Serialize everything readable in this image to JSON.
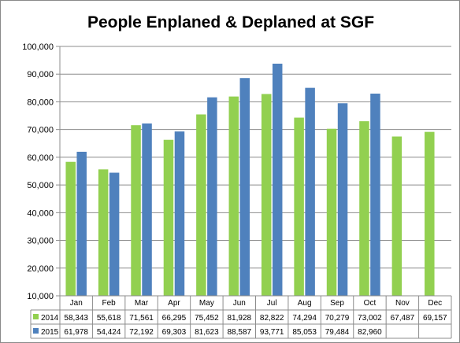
{
  "chart_data": {
    "type": "bar",
    "title": "People Enplaned & Deplaned at SGF",
    "xlabel": "",
    "ylabel": "",
    "ylim": [
      10000,
      100000
    ],
    "yticks": [
      "10,000",
      "20,000",
      "30,000",
      "40,000",
      "50,000",
      "60,000",
      "70,000",
      "80,000",
      "90,000",
      "100,000"
    ],
    "grid": true,
    "legend": "data-table",
    "categories": [
      "Jan",
      "Feb",
      "Mar",
      "Apr",
      "May",
      "Jun",
      "Jul",
      "Aug",
      "Sep",
      "Oct",
      "Nov",
      "Dec"
    ],
    "series": [
      {
        "name": "2014",
        "color": "#92d050",
        "values": [
          58343,
          55618,
          71561,
          66295,
          75452,
          81928,
          82822,
          74294,
          70279,
          73002,
          67487,
          69157
        ],
        "labels": [
          "58,343",
          "55,618",
          "71,561",
          "66,295",
          "75,452",
          "81,928",
          "82,822",
          "74,294",
          "70,279",
          "73,002",
          "67,487",
          "69,157"
        ]
      },
      {
        "name": "2015",
        "color": "#4f81bd",
        "values": [
          61978,
          54424,
          72192,
          69303,
          81623,
          88587,
          93771,
          85053,
          79484,
          82960,
          null,
          null
        ],
        "labels": [
          "61,978",
          "54,424",
          "72,192",
          "69,303",
          "81,623",
          "88,587",
          "93,771",
          "85,053",
          "79,484",
          "82,960",
          "",
          ""
        ]
      }
    ]
  }
}
